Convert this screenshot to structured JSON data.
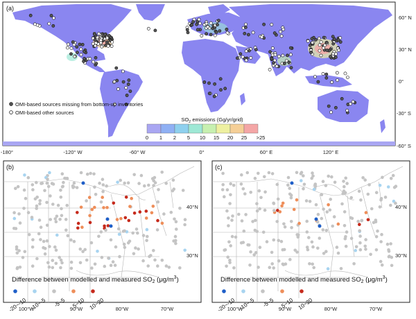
{
  "panel_a": {
    "label": "(a)",
    "lon_ticks": [
      "-180°",
      "-120° W",
      "-60° W",
      "0°",
      "60° E",
      "120° E"
    ],
    "lat_ticks": [
      "60° N",
      "30° N",
      "0°",
      "-30° S",
      "-60° S"
    ],
    "legend_missing": "OMI-based sources missing from bottom-up inventories",
    "legend_other": "OMI-based other sources",
    "colorbar": {
      "title_prefix": "SO",
      "title_sub": "2",
      "title_suffix": " emissions (Gg/yr/grid)",
      "tick_labels": [
        "0",
        "1",
        "2",
        "5",
        "10",
        "15",
        "20",
        "25",
        ">25"
      ],
      "colors": [
        "#a9a6f2",
        "#8fb0f4",
        "#8ed0ee",
        "#9ee8d5",
        "#c7f0b0",
        "#eef0a0",
        "#f5cf97",
        "#f4a6a6"
      ]
    },
    "ocean_color": "#ffffff",
    "land_color": "#8a86f0"
  },
  "panel_b": {
    "label": "(b)",
    "lon_ticks": [
      "100°W",
      "90°W",
      "80°W",
      "70°W"
    ],
    "lat_ticks": [
      "40°N",
      "30°N"
    ],
    "legend_title_prefix": "Difference between modelled and measured SO",
    "legend_title_sub": "2",
    "legend_title_suffix": " (μg/m",
    "legend_title_sup": "3",
    "legend_title_end": ")",
    "classes": [
      "-20~-10",
      "-10~-5",
      "-5~5",
      "5~10",
      "10~20"
    ],
    "class_colors": [
      "#1f5fc8",
      "#a8d4f0",
      "#c4c4c4",
      "#ee8e5a",
      "#c62a1c"
    ]
  },
  "panel_c": {
    "label": "(c)",
    "lon_ticks": [
      "100°W",
      "90°W",
      "80°W",
      "70°W"
    ],
    "lat_ticks": [
      "40°N",
      "30°N"
    ],
    "legend_title_prefix": "Difference between modelled and measured SO",
    "legend_title_sub": "2",
    "legend_title_suffix": " (μg/m",
    "legend_title_sup": "3",
    "legend_title_end": ")",
    "classes": [
      "-20~-10",
      "-10~-5",
      "-5~5",
      "5~10",
      "10~20"
    ],
    "class_colors": [
      "#1f5fc8",
      "#a8d4f0",
      "#c4c4c4",
      "#ee8e5a",
      "#c62a1c"
    ]
  }
}
